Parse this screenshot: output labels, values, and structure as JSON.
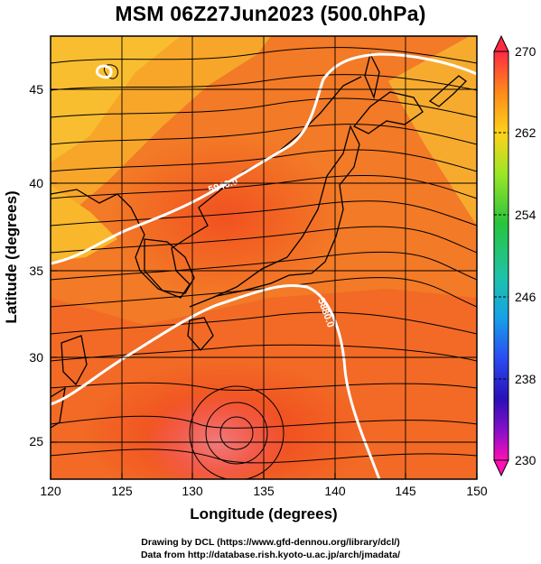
{
  "title": "MSM 06Z27Jun2023 (500.0hPa)",
  "axes": {
    "xlabel": "Longitude (degrees)",
    "ylabel": "Latitude  (degrees)",
    "xlim": [
      120,
      150
    ],
    "ylim": [
      22.4,
      47.9
    ],
    "xticks": [
      "120",
      "125",
      "130",
      "135",
      "140",
      "145",
      "150"
    ],
    "yticks": [
      "25",
      "30",
      "35",
      "40",
      "45"
    ]
  },
  "colorbar": {
    "min": 230,
    "max": 270,
    "labels": [
      "270",
      "262",
      "254",
      "246",
      "238",
      "230"
    ],
    "colors": [
      "#ff2a44",
      "#ff8a1a",
      "#ffd21a",
      "#9be628",
      "#28c43c",
      "#1ec3a8",
      "#16a2e6",
      "#2a4cf2",
      "#2a10b8",
      "#8a10c8",
      "#ff10b4"
    ]
  },
  "contours": [
    {
      "label": "5940.0"
    },
    {
      "label": "5880.0"
    }
  ],
  "credits": {
    "line1": "Drawing by DCL (https://www.gfd-dennou.org/library/dcl/)",
    "line2": "Data from http://database.rish.kyoto-u.ac.jp/arch/jmadata/"
  }
}
